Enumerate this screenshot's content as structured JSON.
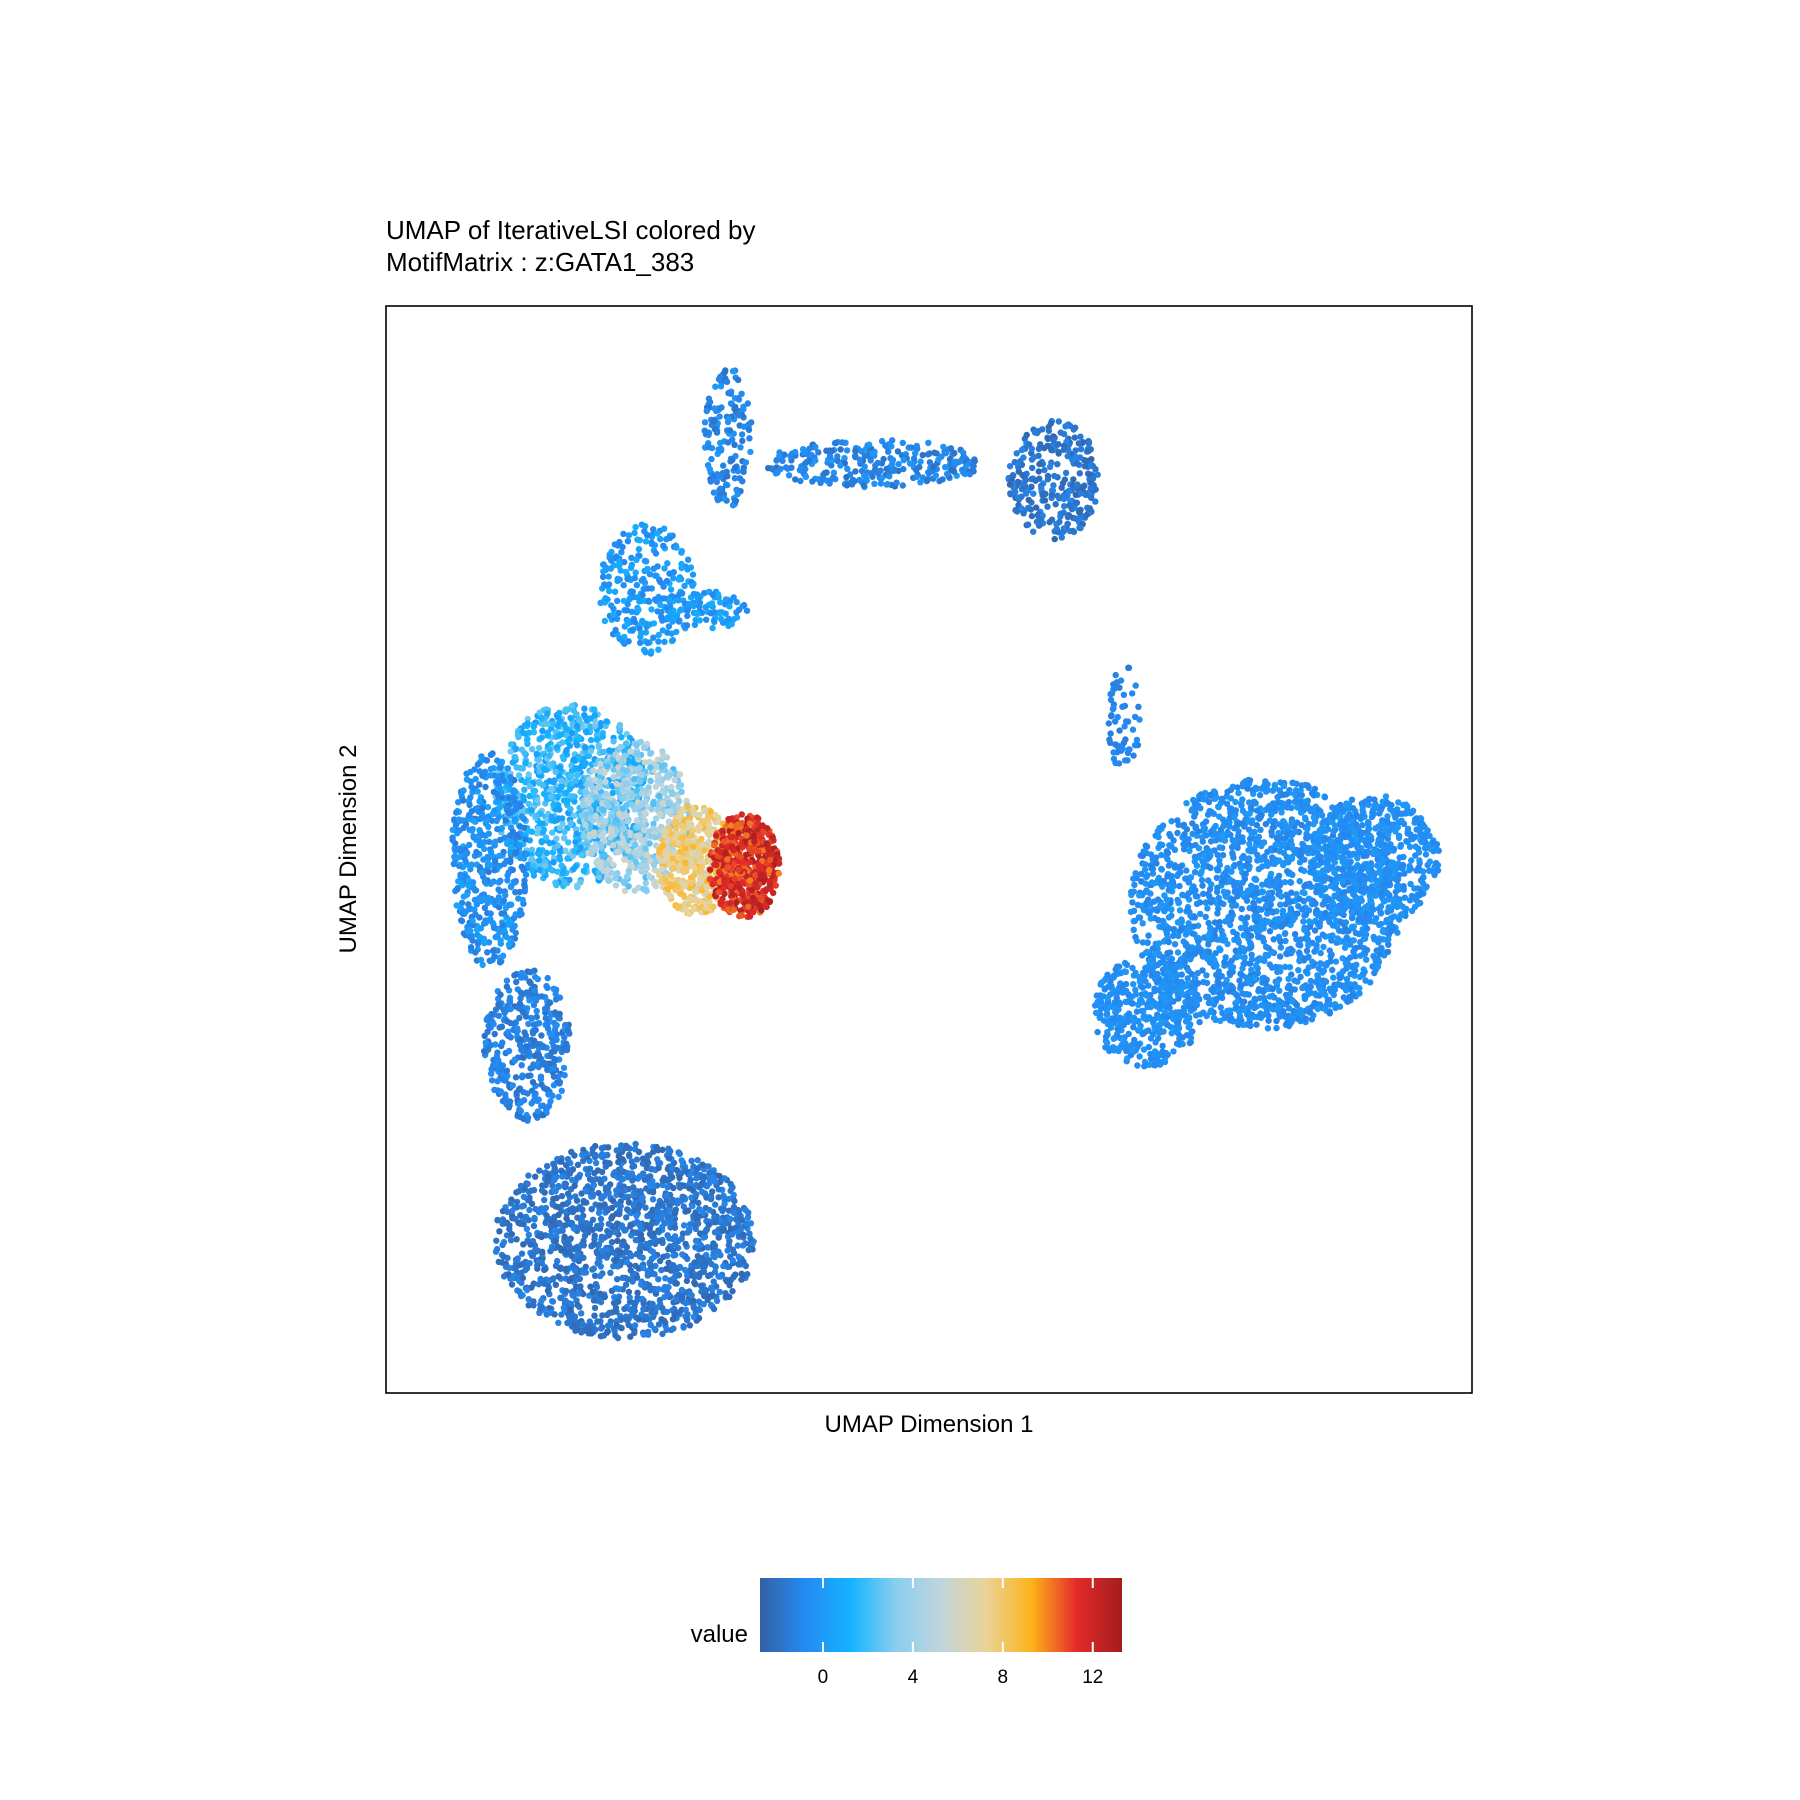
{
  "chart_data": {
    "type": "scatter",
    "title_line1": "UMAP of IterativeLSI colored by",
    "title_line2": "MotifMatrix : z:GATA1_383",
    "xlabel": "UMAP Dimension 1",
    "ylabel": "UMAP Dimension 2",
    "xlim": [
      0,
      100
    ],
    "ylim": [
      0,
      100
    ],
    "grid": false,
    "axis_ticks_shown": false,
    "legend": {
      "title": "value",
      "placement": "bottom",
      "range": [
        -2.8,
        13.3
      ],
      "ticks": [
        0,
        4,
        8,
        12
      ],
      "tick_labels": [
        "0",
        "4",
        "8",
        "12"
      ],
      "colors": [
        "#3361A5",
        "#248AF3",
        "#14B3FF",
        "#88CEEF",
        "#C1D5DC",
        "#EAD397",
        "#FDB31A",
        "#E42A2A",
        "#A31D1D"
      ]
    },
    "clusters": [
      {
        "name_hint": "top-stem",
        "cx": 31.5,
        "cy": 88,
        "rx": 2.2,
        "ry": 6.5,
        "n": 160,
        "v": [
          -2,
          0
        ]
      },
      {
        "name_hint": "upper-arm",
        "cx": 24,
        "cy": 74,
        "rx": 4.5,
        "ry": 6,
        "n": 260,
        "v": [
          -1,
          1
        ]
      },
      {
        "name_hint": "top-bridge",
        "cx": 45,
        "cy": 85.5,
        "rx": 10,
        "ry": 2.2,
        "n": 280,
        "v": [
          -2,
          0
        ]
      },
      {
        "name_hint": "top-right-blob",
        "cx": 61.5,
        "cy": 84,
        "rx": 4.2,
        "ry": 5.5,
        "n": 300,
        "v": [
          -2.5,
          -1
        ]
      },
      {
        "name_hint": "small-branch",
        "cx": 29,
        "cy": 72,
        "rx": 4.5,
        "ry": 1.8,
        "n": 90,
        "v": [
          -1,
          1
        ]
      },
      {
        "name_hint": "light-blue-core",
        "cx": 17,
        "cy": 55,
        "rx": 7,
        "ry": 8.5,
        "n": 900,
        "v": [
          0,
          3
        ]
      },
      {
        "name_hint": "pale-gradient",
        "cx": 23,
        "cy": 53,
        "rx": 5,
        "ry": 7,
        "n": 600,
        "v": [
          2,
          6
        ]
      },
      {
        "name_hint": "orange-zone",
        "cx": 28.5,
        "cy": 49,
        "rx": 3.5,
        "ry": 5,
        "n": 450,
        "v": [
          6,
          9
        ]
      },
      {
        "name_hint": "red-core",
        "cx": 33,
        "cy": 48.5,
        "rx": 3.3,
        "ry": 4.8,
        "n": 550,
        "v": [
          10,
          13
        ]
      },
      {
        "name_hint": "left-edge",
        "cx": 9.5,
        "cy": 49,
        "rx": 3.5,
        "ry": 10,
        "n": 450,
        "v": [
          -1.5,
          0.5
        ]
      },
      {
        "name_hint": "lower-arm",
        "cx": 13,
        "cy": 32,
        "rx": 4,
        "ry": 7,
        "n": 380,
        "v": [
          -2,
          -0.5
        ]
      },
      {
        "name_hint": "bottom-blob",
        "cx": 22,
        "cy": 14,
        "rx": 12,
        "ry": 9,
        "n": 1500,
        "v": [
          -2.5,
          -1
        ]
      },
      {
        "name_hint": "thin-connector",
        "cx": 68,
        "cy": 62,
        "rx": 1.5,
        "ry": 5,
        "n": 60,
        "v": [
          -1.5,
          -0.5
        ]
      },
      {
        "name_hint": "right-blob",
        "cx": 81,
        "cy": 45,
        "rx": 12.5,
        "ry": 11.5,
        "n": 2000,
        "v": [
          -1.2,
          0
        ]
      },
      {
        "name_hint": "right-lobe",
        "cx": 91,
        "cy": 49,
        "rx": 6,
        "ry": 6,
        "n": 500,
        "v": [
          -1,
          0
        ]
      },
      {
        "name_hint": "right-tail",
        "cx": 70,
        "cy": 35,
        "rx": 5,
        "ry": 5,
        "n": 400,
        "v": [
          -1,
          0
        ]
      }
    ]
  }
}
